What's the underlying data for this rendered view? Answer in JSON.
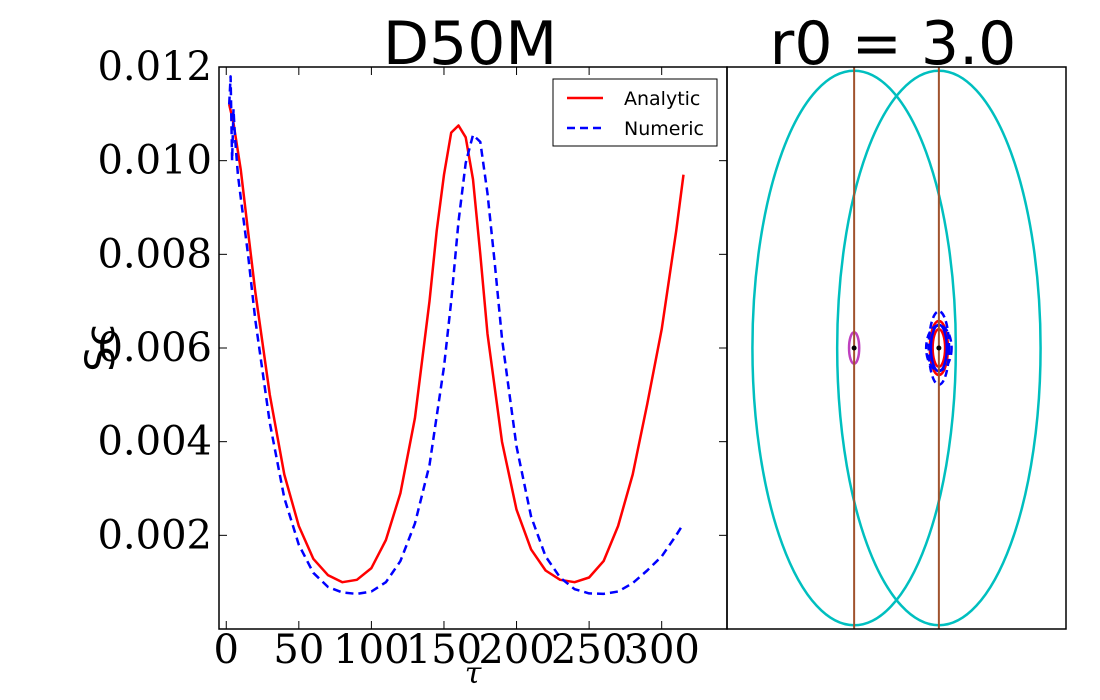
{
  "chart_data": [
    {
      "type": "line",
      "title": "D50M",
      "xlabel": "τ",
      "ylabel": "Sc",
      "xlim": [
        -5,
        345
      ],
      "ylim": [
        0.0,
        0.012
      ],
      "xticks": [
        0,
        50,
        100,
        150,
        200,
        250,
        300
      ],
      "yticks": [
        0.002,
        0.004,
        0.006,
        0.008,
        0.01,
        0.012
      ],
      "ytick_labels": [
        "0.002",
        "0.004",
        "0.006",
        "0.008",
        "0.010",
        "0.012"
      ],
      "grid": false,
      "legend": "top-right",
      "series": [
        {
          "name": "Analytic",
          "style": "solid",
          "color": "#ff0000",
          "x": [
            2,
            5,
            10,
            15,
            20,
            30,
            40,
            50,
            60,
            70,
            80,
            90,
            100,
            110,
            120,
            130,
            140,
            145,
            150,
            155,
            160,
            165,
            170,
            175,
            180,
            190,
            200,
            210,
            220,
            230,
            240,
            250,
            260,
            270,
            280,
            290,
            300,
            310,
            315
          ],
          "y": [
            0.0112,
            0.0108,
            0.0098,
            0.0085,
            0.0072,
            0.005,
            0.0033,
            0.0022,
            0.0015,
            0.00115,
            0.001,
            0.00105,
            0.0013,
            0.0019,
            0.0029,
            0.0045,
            0.007,
            0.0085,
            0.0097,
            0.0106,
            0.01075,
            0.0105,
            0.0096,
            0.008,
            0.0063,
            0.004,
            0.00255,
            0.0017,
            0.00125,
            0.00105,
            0.001,
            0.0011,
            0.00145,
            0.0022,
            0.0033,
            0.0048,
            0.0064,
            0.0085,
            0.0097
          ]
        },
        {
          "name": "Numeric",
          "style": "dashed",
          "color": "#0000ff",
          "x": [
            2,
            3,
            4,
            5,
            6,
            8,
            10,
            15,
            20,
            30,
            40,
            50,
            60,
            70,
            80,
            90,
            100,
            110,
            120,
            130,
            140,
            150,
            155,
            160,
            165,
            170,
            175,
            180,
            185,
            190,
            200,
            210,
            220,
            230,
            240,
            250,
            260,
            270,
            280,
            290,
            300,
            310,
            315
          ],
          "y": [
            0.0112,
            0.0118,
            0.01,
            0.0111,
            0.0105,
            0.0097,
            0.0092,
            0.008,
            0.0066,
            0.0044,
            0.0028,
            0.0018,
            0.0012,
            0.0009,
            0.00078,
            0.00075,
            0.0008,
            0.001,
            0.00145,
            0.00225,
            0.0035,
            0.0056,
            0.007,
            0.0087,
            0.00995,
            0.01055,
            0.0104,
            0.0093,
            0.0078,
            0.0062,
            0.0039,
            0.0024,
            0.00155,
            0.0011,
            0.00085,
            0.00076,
            0.00075,
            0.0008,
            0.00098,
            0.00125,
            0.00155,
            0.002,
            0.00225
          ]
        }
      ]
    },
    {
      "type": "scatter",
      "title": "r0 = 3.0",
      "xlabel": "",
      "ylabel": "",
      "xlim": [
        -6.0,
        6.0
      ],
      "ylim": [
        -7.5,
        7.5
      ],
      "axis_ticks": false,
      "vertical_lines": [
        {
          "x": -1.5,
          "color": "#a0522d"
        },
        {
          "x": 1.5,
          "color": "#a0522d"
        }
      ],
      "points": [
        {
          "x": -1.5,
          "y": 0.0,
          "color": "#000000"
        },
        {
          "x": 1.5,
          "y": 0.0,
          "color": "#000000"
        }
      ],
      "ellipses": [
        {
          "cx": -1.5,
          "cy": 0.0,
          "rx": 3.6,
          "ry": 7.4,
          "color": "#00bfbf",
          "style": "solid"
        },
        {
          "cx": 1.5,
          "cy": 0.0,
          "rx": 3.6,
          "ry": 7.4,
          "color": "#00bfbf",
          "style": "solid"
        },
        {
          "cx": -1.5,
          "cy": 0.0,
          "rx": 0.18,
          "ry": 0.42,
          "color": "#bf40bf",
          "style": "solid"
        },
        {
          "cx": 1.5,
          "cy": 0.0,
          "rx": 0.22,
          "ry": 0.5,
          "color": "#ff0000",
          "style": "solid"
        },
        {
          "cx": 1.5,
          "cy": 0.0,
          "rx": 0.32,
          "ry": 0.72,
          "color": "#ff0000",
          "style": "solid"
        },
        {
          "cx": 1.5,
          "cy": 0.0,
          "rx": 0.28,
          "ry": 0.62,
          "color": "#0000ff",
          "style": "solid"
        },
        {
          "cx": 1.5,
          "cy": 0.0,
          "rx": 0.45,
          "ry": 0.6,
          "color": "#0000ff",
          "style": "dashed"
        },
        {
          "cx": 1.5,
          "cy": 0.0,
          "rx": 0.36,
          "ry": 0.98,
          "color": "#0000ff",
          "style": "dashed"
        }
      ]
    }
  ]
}
